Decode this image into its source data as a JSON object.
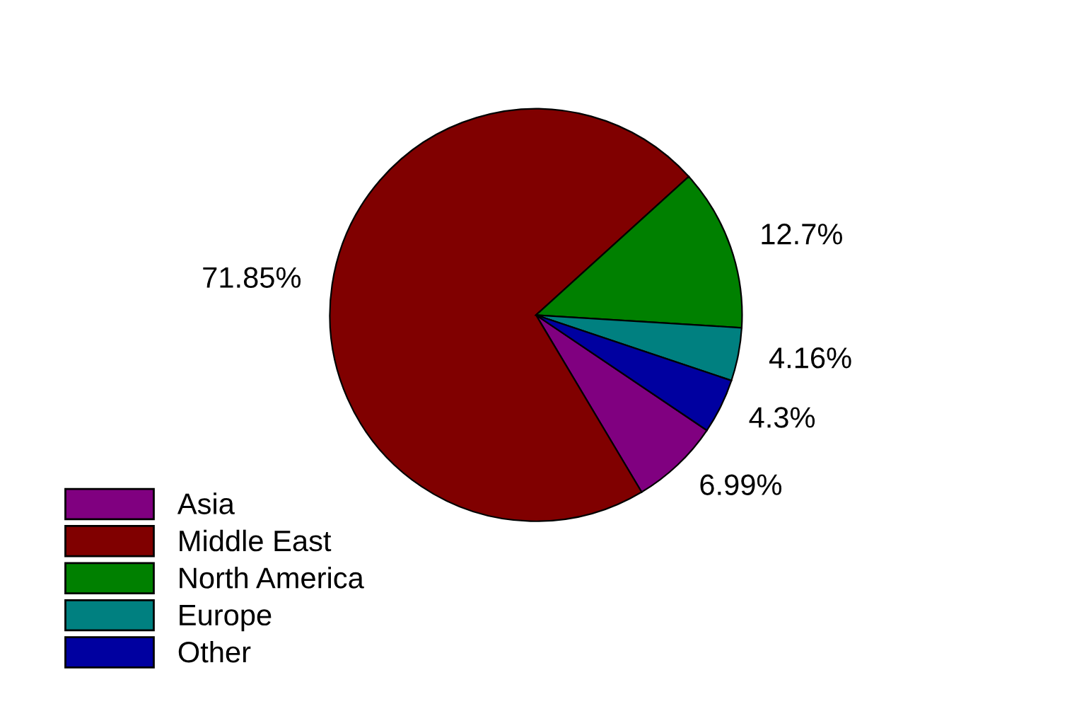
{
  "chart_data": {
    "type": "pie",
    "categories": [
      "Asia",
      "Middle East",
      "North America",
      "Europe",
      "Other"
    ],
    "values": [
      6.99,
      71.85,
      12.7,
      4.16,
      4.3
    ],
    "colors": [
      "#800080",
      "#800000",
      "#008000",
      "#008080",
      "#0000a0"
    ],
    "value_labels": [
      "6.99%",
      "71.85%",
      "12.7%",
      "4.16%",
      "4.3%"
    ],
    "legend": "bottom left"
  }
}
